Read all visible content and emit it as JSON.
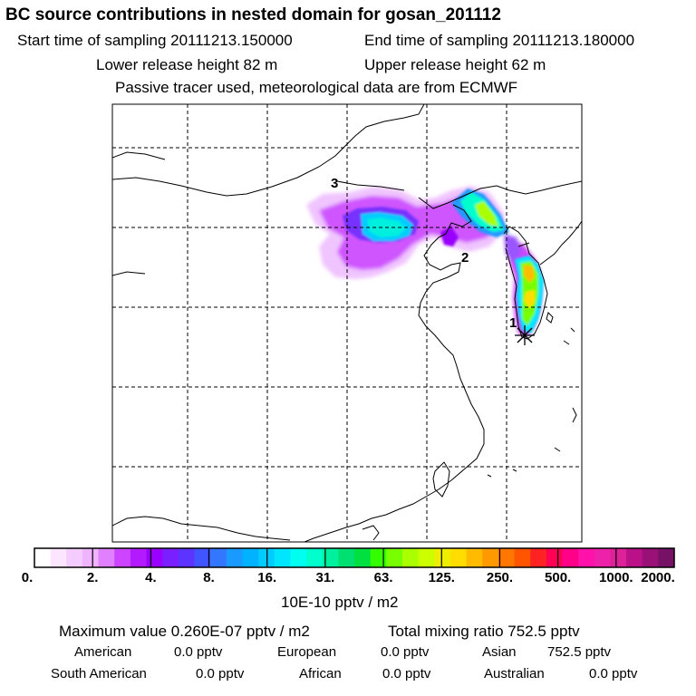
{
  "header": {
    "title": "BC  source contributions in nested domain for gosan_201112",
    "start_time": "Start time of sampling 20111213.150000",
    "end_time": "End time of sampling 20111213.180000",
    "lower_release": "Lower release height   82 m",
    "upper_release": "Upper release height   62 m",
    "tracer_note": "Passive tracer used, meteorological data are from ECMWF"
  },
  "map": {
    "labels": [
      "3",
      "2",
      "1"
    ],
    "receptor_marker": "star-icon"
  },
  "colorbar": {
    "ticks": [
      "0.",
      "2.",
      "4.",
      "8.",
      "16.",
      "31.",
      "63.",
      "125.",
      "250.",
      "500.",
      "1000.",
      "2000."
    ],
    "colors": [
      "#ffffff",
      "#fce6ff",
      "#f5ccff",
      "#efb3ff",
      "#e080ff",
      "#cc44ff",
      "#b31aff",
      "#9900ff",
      "#7a1fff",
      "#5c33ff",
      "#4055ff",
      "#3377ff",
      "#1a99ff",
      "#00b2ff",
      "#00ccff",
      "#00e6ff",
      "#00ffee",
      "#00ffcc",
      "#00f0a0",
      "#00e070",
      "#00e040",
      "#33ff00",
      "#77ff00",
      "#aaff00",
      "#ccff00",
      "#eeee00",
      "#ffdd00",
      "#ffbb00",
      "#ff9900",
      "#ff7700",
      "#ff5500",
      "#ff2222",
      "#ff0055",
      "#ff0088",
      "#ff11aa",
      "#ee22aa",
      "#dd2299",
      "#bb1188",
      "#991177",
      "#771166"
    ],
    "unit": "10E-10 pptv / m2"
  },
  "summary": {
    "maximum": "Maximum value  0.260E-07 pptv / m2",
    "total": "Total mixing ratio      752.5 pptv",
    "regions": [
      {
        "name": "American",
        "value": "0.0 pptv"
      },
      {
        "name": "European",
        "value": "0.0 pptv"
      },
      {
        "name": "Asian",
        "value": "752.5 pptv"
      },
      {
        "name": "South American",
        "value": "0.0 pptv"
      },
      {
        "name": "African",
        "value": "0.0 pptv"
      },
      {
        "name": "Australian",
        "value": "0.0 pptv"
      }
    ]
  }
}
